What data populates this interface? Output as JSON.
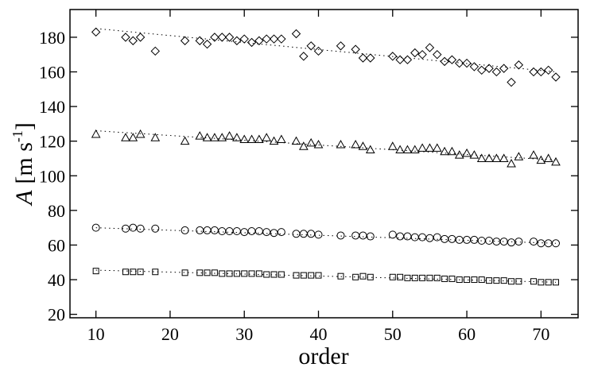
{
  "chart_data": {
    "type": "scatter",
    "xlabel": "order",
    "ylabel": {
      "symbol": "A",
      "unit": "[m s",
      "exponent": "-1",
      "close": "]"
    },
    "xlim": [
      6.5,
      75
    ],
    "ylim": [
      18,
      196
    ],
    "xticks": [
      10,
      20,
      30,
      40,
      50,
      60,
      70
    ],
    "yticks": [
      20,
      40,
      60,
      80,
      100,
      120,
      140,
      160,
      180
    ],
    "trend_x": [
      10,
      72
    ],
    "x": [
      10,
      14,
      15,
      16,
      18,
      22,
      24,
      25,
      26,
      27,
      28,
      29,
      30,
      31,
      32,
      33,
      34,
      35,
      37,
      38,
      39,
      40,
      43,
      45,
      46,
      47,
      50,
      51,
      52,
      53,
      54,
      55,
      56,
      57,
      58,
      59,
      60,
      61,
      62,
      63,
      64,
      65,
      66,
      67,
      69,
      70,
      71,
      72
    ],
    "series": [
      {
        "marker": "diamond",
        "color": "#000000",
        "trend": [
          185,
          160
        ],
        "values": [
          183,
          180,
          178,
          180,
          172,
          178,
          178,
          176,
          180,
          180,
          180,
          178,
          179,
          177,
          178,
          179,
          179,
          179,
          182,
          169,
          175,
          172,
          175,
          173,
          168,
          168,
          169,
          167,
          167,
          171,
          170,
          174,
          170,
          166,
          167,
          165,
          165,
          163,
          161,
          162,
          160,
          162,
          154,
          164,
          160,
          160,
          161,
          157
        ]
      },
      {
        "marker": "triangle",
        "color": "#000000",
        "trend": [
          126,
          109
        ],
        "values": [
          124,
          122,
          122,
          124,
          122,
          120,
          123,
          122,
          122,
          122,
          123,
          122,
          121,
          121,
          121,
          122,
          120,
          121,
          120,
          117,
          119,
          118,
          118,
          118,
          117,
          115,
          117,
          115,
          115,
          115,
          116,
          116,
          116,
          114,
          114,
          112,
          113,
          112,
          110,
          110,
          110,
          110,
          107,
          111,
          112,
          109,
          110,
          108
        ]
      },
      {
        "marker": "circle",
        "color": "#000000",
        "trend": [
          70,
          61
        ],
        "values": [
          70,
          69.5,
          70,
          69.5,
          69.5,
          68.5,
          68.5,
          68.5,
          68.5,
          68,
          68,
          68,
          67.5,
          68,
          68,
          67.5,
          67,
          67.5,
          66.5,
          66.5,
          66.5,
          66,
          65.5,
          65.5,
          65.5,
          65,
          66,
          65,
          65,
          64.5,
          64.5,
          64,
          64.5,
          63.5,
          63.5,
          63,
          63,
          63,
          62.5,
          62.5,
          62,
          62,
          61.5,
          62,
          62,
          61,
          61,
          61
        ]
      },
      {
        "marker": "square",
        "color": "#000000",
        "trend": [
          45.5,
          38.5
        ],
        "values": [
          45,
          44.5,
          44.5,
          44.5,
          44.5,
          44,
          44,
          44,
          44,
          43.5,
          43.5,
          43.5,
          43.5,
          43.5,
          43.5,
          43,
          43,
          43,
          42.5,
          42.5,
          42.5,
          42.5,
          42,
          41.5,
          42,
          41.5,
          41.5,
          41.5,
          41,
          41,
          41,
          41,
          41,
          40.5,
          40.5,
          40,
          40,
          40,
          40,
          39.5,
          39.5,
          39.5,
          39,
          39,
          39,
          38.5,
          38.5,
          38.5
        ]
      }
    ]
  }
}
